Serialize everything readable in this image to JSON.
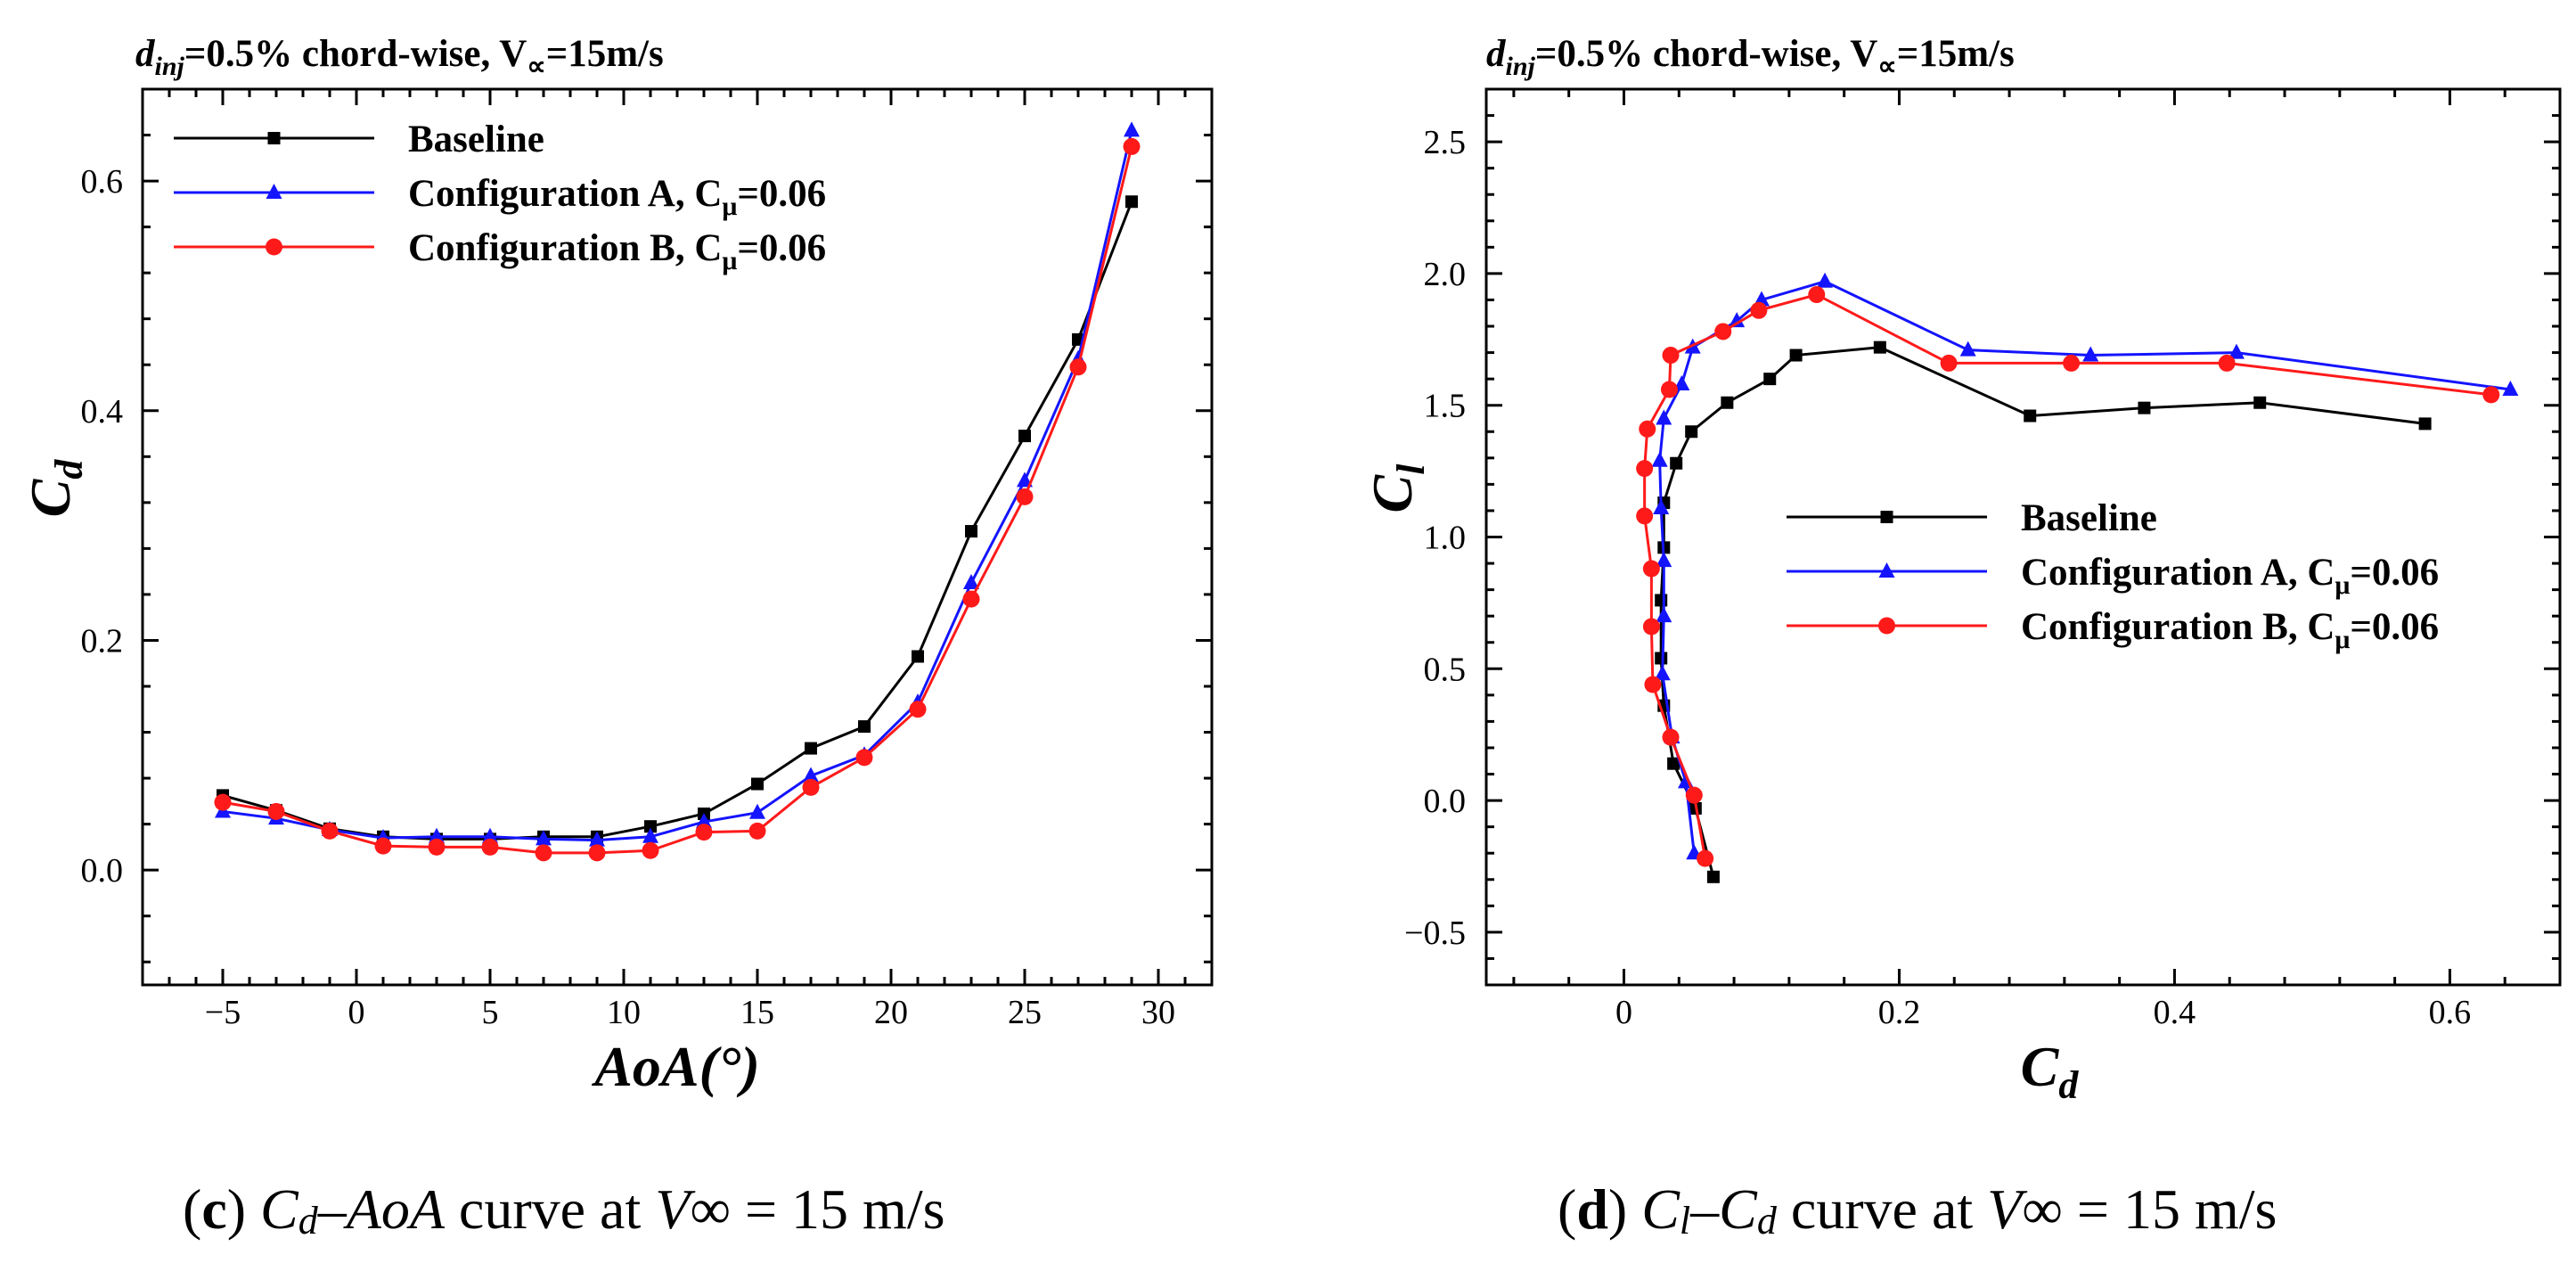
{
  "colors": {
    "baseline": "#000000",
    "config_a": "#1414ff",
    "config_b": "#ff1a1a"
  },
  "chart_data": [
    {
      "type": "line",
      "panel": "c",
      "title": {
        "d": "d",
        "inj": "inj",
        "rest": "=0.5% chord-wise, V",
        "inf": "∝",
        "tail": "=15m/s"
      },
      "xlabel": "AoA(°)",
      "ylabel": {
        "main": "C",
        "sub": "d"
      },
      "xlim": [
        -8,
        32
      ],
      "ylim": [
        -0.1,
        0.68
      ],
      "xticks": [
        -5,
        0,
        5,
        10,
        15,
        20,
        25,
        30
      ],
      "xtick_labels": [
        "−5",
        "0",
        "5",
        "10",
        "15",
        "20",
        "25",
        "30"
      ],
      "yticks": [
        0.0,
        0.2,
        0.4,
        0.6
      ],
      "ytick_labels": [
        "0.0",
        "0.2",
        "0.4",
        "0.6"
      ],
      "legend_position": "top-left",
      "series": [
        {
          "key": "baseline",
          "name": "Baseline",
          "marker": "square",
          "x": [
            -5,
            -3,
            -1,
            1,
            3,
            5,
            7,
            9,
            11,
            13,
            15,
            17,
            19,
            21,
            23,
            25,
            27,
            29
          ],
          "y": [
            0.065,
            0.052,
            0.036,
            0.029,
            0.027,
            0.027,
            0.029,
            0.029,
            0.038,
            0.049,
            0.075,
            0.106,
            0.125,
            0.186,
            0.295,
            0.378,
            0.462,
            0.582
          ]
        },
        {
          "key": "config_a",
          "name": "Configuration A, C",
          "mu": "μ",
          "suffix": "=0.06",
          "marker": "triangle",
          "x": [
            -5,
            -3,
            -1,
            1,
            3,
            5,
            7,
            9,
            11,
            13,
            15,
            17,
            19,
            21,
            23,
            25,
            27,
            29
          ],
          "y": [
            0.051,
            0.045,
            0.035,
            0.028,
            0.029,
            0.029,
            0.027,
            0.026,
            0.029,
            0.042,
            0.05,
            0.082,
            0.1,
            0.146,
            0.25,
            0.339,
            0.445,
            0.644
          ]
        },
        {
          "key": "config_b",
          "name": "Configuration B, C",
          "mu": "μ",
          "suffix": "=0.06",
          "marker": "circle",
          "x": [
            -5,
            -3,
            -1,
            1,
            3,
            5,
            7,
            9,
            11,
            13,
            15,
            17,
            19,
            21,
            23,
            25,
            27,
            29
          ],
          "y": [
            0.059,
            0.051,
            0.034,
            0.021,
            0.02,
            0.02,
            0.015,
            0.015,
            0.017,
            0.033,
            0.034,
            0.072,
            0.098,
            0.14,
            0.236,
            0.325,
            0.438,
            0.63
          ]
        }
      ]
    },
    {
      "type": "line",
      "panel": "d",
      "title": {
        "d": "d",
        "inj": "inj",
        "rest": "=0.5% chord-wise, V",
        "inf": "∝",
        "tail": "=15m/s"
      },
      "xlabel": {
        "main": "C",
        "sub": "d"
      },
      "ylabel": {
        "main": "C",
        "sub": "l"
      },
      "xlim": [
        -0.1,
        0.68
      ],
      "ylim": [
        -0.7,
        2.7
      ],
      "xticks": [
        0.0,
        0.2,
        0.4,
        0.6
      ],
      "xtick_labels": [
        "0",
        "0.2",
        "0.4",
        "0.6"
      ],
      "yticks": [
        -0.5,
        0.0,
        0.5,
        1.0,
        1.5,
        2.0,
        2.5
      ],
      "ytick_labels": [
        "−0.5",
        "0.0",
        "0.5",
        "1.0",
        "1.5",
        "2.0",
        "2.5"
      ],
      "legend_position": "center-right",
      "series": [
        {
          "key": "baseline",
          "name": "Baseline",
          "marker": "square",
          "x": [
            0.065,
            0.052,
            0.036,
            0.029,
            0.027,
            0.027,
            0.029,
            0.029,
            0.038,
            0.049,
            0.075,
            0.106,
            0.125,
            0.186,
            0.295,
            0.378,
            0.462,
            0.582
          ],
          "y": [
            -0.29,
            -0.03,
            0.14,
            0.36,
            0.54,
            0.76,
            0.96,
            1.13,
            1.28,
            1.4,
            1.51,
            1.6,
            1.69,
            1.72,
            1.46,
            1.49,
            1.51,
            1.43
          ]
        },
        {
          "key": "config_a",
          "name": "Configuration A, C",
          "mu": "μ",
          "suffix": "=0.06",
          "marker": "triangle",
          "x": [
            0.051,
            0.045,
            0.035,
            0.028,
            0.029,
            0.029,
            0.027,
            0.026,
            0.029,
            0.042,
            0.05,
            0.082,
            0.1,
            0.146,
            0.25,
            0.339,
            0.445,
            0.644
          ],
          "y": [
            -0.2,
            0.07,
            0.24,
            0.48,
            0.7,
            0.91,
            1.11,
            1.29,
            1.45,
            1.58,
            1.72,
            1.82,
            1.9,
            1.97,
            1.71,
            1.69,
            1.7,
            1.56
          ]
        },
        {
          "key": "config_b",
          "name": "Configuration B, C",
          "mu": "μ",
          "suffix": "=0.06",
          "marker": "circle",
          "x": [
            0.059,
            0.051,
            0.034,
            0.021,
            0.02,
            0.02,
            0.015,
            0.015,
            0.017,
            0.033,
            0.034,
            0.072,
            0.098,
            0.14,
            0.236,
            0.325,
            0.438,
            0.63
          ],
          "y": [
            -0.22,
            0.02,
            0.24,
            0.44,
            0.66,
            0.88,
            1.08,
            1.26,
            1.41,
            1.56,
            1.69,
            1.78,
            1.86,
            1.92,
            1.66,
            1.66,
            1.66,
            1.54
          ]
        }
      ]
    }
  ],
  "captions": [
    {
      "label": "c",
      "a": "C",
      "a_sub": "d",
      "dash": "–",
      "b": "AoA",
      "mid": " curve at ",
      "v": "V",
      "inf": "∞",
      "tail": " = 15 m/s"
    },
    {
      "label": "d",
      "a": "C",
      "a_sub": "l",
      "dash": "–",
      "b": "C",
      "b_sub": "d",
      "mid": " curve at ",
      "v": "V",
      "inf": "∞",
      "tail": " = 15 m/s"
    }
  ]
}
